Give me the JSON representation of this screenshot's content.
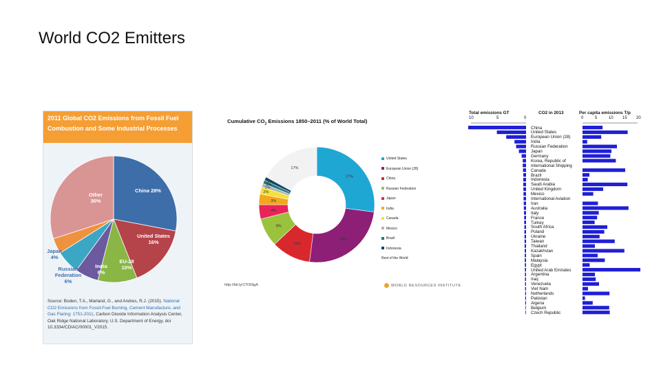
{
  "slide": {
    "title": "World CO2 Emitters"
  },
  "panel1": {
    "header": "2011 Global CO2 Emissions from Fossil Fuel Combustion and Some Industrial Processes",
    "source_prefix": "Source: Boden, T.A., Marland, G., and Andres, R.J. (2015).",
    "source_link": "National CO2 Emissions from Fossil-Fuel Burning, Cement Manufacture, and Gas Flaring: 1751-2011",
    "source_suffix": ", Carbon Dioxide Information Analysis Center, Oak Ridge National Laboratory, U.S. Department of Energy, doi 10.3334/CDIAC/00001_V2015."
  },
  "panel2": {
    "title_main": "Cumulative CO",
    "title_sub": "2",
    "title_rest": " Emissions 1850–2011 (% of World Total)",
    "url": "http://bit.ly/1TISNgA",
    "wri": "WORLD RESOURCES INSTITUTE"
  },
  "panel3": {
    "head_total": "Total emissions GT",
    "head_year": "CO2 in 2013",
    "head_percap": "Per capita emissions T/p",
    "ticks_total": [
      "10",
      "5",
      "0"
    ],
    "ticks_percap": [
      "0",
      "5",
      "10",
      "15",
      "20"
    ]
  },
  "chart_data": [
    {
      "type": "pie",
      "title": "2011 Global CO2 Emissions from Fossil Fuel Combustion and Some Industrial Processes",
      "slices": [
        {
          "label": "China",
          "value": 28,
          "color": "#3d6ea9",
          "text": "China 28%"
        },
        {
          "label": "United States",
          "value": 16,
          "color": "#b5434a",
          "text": "United States 16%"
        },
        {
          "label": "EU-28",
          "value": 10,
          "color": "#8ab645",
          "text": "EU-28 10%"
        },
        {
          "label": "India",
          "value": 6,
          "color": "#6b5a9e",
          "text": "India 6%"
        },
        {
          "label": "Russian Federation",
          "value": 6,
          "color": "#3ba7c4",
          "text": "Russian Federation 6%"
        },
        {
          "label": "Japan",
          "value": 4,
          "color": "#ef9240",
          "text": "Japan 4%"
        },
        {
          "label": "Other",
          "value": 30,
          "color": "#d99594",
          "text": "Other 30%"
        }
      ]
    },
    {
      "type": "pie",
      "subtype": "donut",
      "title": "Cumulative CO2 Emissions 1850–2011 (% of World Total)",
      "slices": [
        {
          "label": "United States",
          "value": 27,
          "color": "#1fa7d4",
          "text": "27%"
        },
        {
          "label": "European Union (28)",
          "value": 25,
          "color": "#8e1f77",
          "text": "25%"
        },
        {
          "label": "China",
          "value": 11,
          "color": "#d8282e",
          "text": "11%"
        },
        {
          "label": "Russian Federation",
          "value": 8,
          "color": "#9bc23c",
          "text": "8%"
        },
        {
          "label": "Japan",
          "value": 4,
          "color": "#e8245a",
          "text": "4%"
        },
        {
          "label": "India",
          "value": 3,
          "color": "#f2a81e",
          "text": "3%"
        },
        {
          "label": "Canada",
          "value": 2,
          "color": "#f4e03a",
          "text": "2%"
        },
        {
          "label": "Mexico",
          "value": 1,
          "color": "#b3b3b3",
          "text": "1%"
        },
        {
          "label": "Brazil",
          "value": 1,
          "color": "#1b7a7a",
          "text": "1%"
        },
        {
          "label": "Indonesia",
          "value": 1,
          "color": "#17466a",
          "text": "1%"
        },
        {
          "label": "Rest of the World",
          "value": 17,
          "color": "#f2f2f2",
          "text": "17%"
        }
      ]
    },
    {
      "type": "bar",
      "orientation": "horizontal",
      "title": "CO2 in 2013",
      "categories": [
        "China",
        "United States",
        "European Union (28)",
        "India",
        "Russian Federation",
        "Japan",
        "Germany",
        "Korea, Republic of",
        "International Shipping",
        "Canada",
        "Brazil",
        "Indonesia",
        "Saudi Arabia",
        "United Kingdom",
        "Mexico",
        "International Aviation",
        "Iran",
        "Australia",
        "Italy",
        "France",
        "Turkey",
        "South Africa",
        "Poland",
        "Ukraine",
        "Taiwan",
        "Thailand",
        "Kazakhstan",
        "Spain",
        "Malaysia",
        "Egypt",
        "United Arab Emirates",
        "Argentina",
        "Iraq",
        "Venezuela",
        "Viet Nam",
        "Netherlands",
        "Pakistan",
        "Algeria",
        "Belgium",
        "Czech Republic"
      ],
      "series": [
        {
          "name": "Total emissions GT",
          "values": [
            10.5,
            5.3,
            3.6,
            2.1,
            1.8,
            1.3,
            0.8,
            0.6,
            0.6,
            0.55,
            0.5,
            0.5,
            0.5,
            0.48,
            0.47,
            0.45,
            0.42,
            0.4,
            0.37,
            0.34,
            0.33,
            0.3,
            0.3,
            0.28,
            0.27,
            0.26,
            0.25,
            0.24,
            0.24,
            0.22,
            0.21,
            0.2,
            0.19,
            0.18,
            0.17,
            0.16,
            0.15,
            0.15,
            0.1,
            0.1
          ]
        },
        {
          "name": "Per capita emissions T/p",
          "values": [
            7.3,
            16.4,
            6.8,
            1.7,
            12.5,
            10.5,
            10.1,
            12.1,
            0,
            15.5,
            2.5,
            1.9,
            16.3,
            7.5,
            3.9,
            0,
            5.6,
            16.7,
            5.9,
            5.3,
            4.4,
            9.0,
            7.9,
            6.2,
            11.7,
            4.5,
            15.2,
            5.5,
            8.1,
            2.6,
            21.0,
            4.5,
            4.8,
            6.0,
            2.0,
            9.8,
            0.9,
            3.7,
            9.7,
            9.9
          ]
        }
      ],
      "xlim_total": [
        10,
        0
      ],
      "xlim_percap": [
        0,
        20
      ]
    }
  ]
}
